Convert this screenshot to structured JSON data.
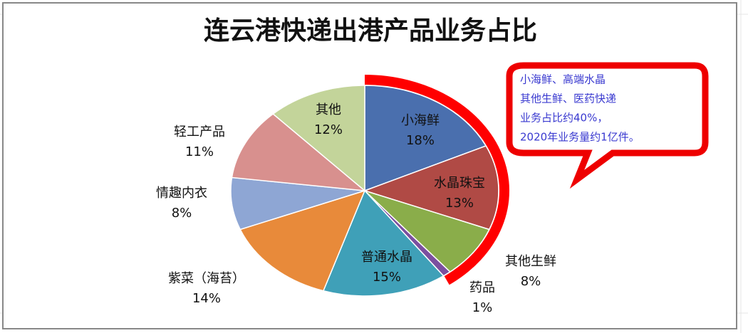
{
  "chart_data": {
    "type": "pie",
    "title": "连云港快递出港产品业务占比",
    "categories": [
      "小海鲜",
      "水晶珠宝",
      "其他生鲜",
      "药品",
      "普通水晶",
      "紫菜（海苔）",
      "情趣内衣",
      "轻工产品",
      "其他"
    ],
    "values": [
      18,
      13,
      8,
      1,
      15,
      14,
      8,
      11,
      12
    ],
    "value_labels": [
      "18%",
      "13%",
      "8%",
      "1%",
      "15%",
      "14%",
      "8%",
      "11%",
      "12%"
    ],
    "colors": [
      "#4a6fae",
      "#b04a45",
      "#8aad4a",
      "#7b4fa0",
      "#3fa0b8",
      "#e88a3a",
      "#8ea6d4",
      "#d8908e",
      "#c3d49a"
    ],
    "annotation": [
      "小海鲜、高端水晶",
      "其他生鲜、医药快递",
      "业务占比约40%，",
      "2020年业务量约1亿件。"
    ]
  }
}
